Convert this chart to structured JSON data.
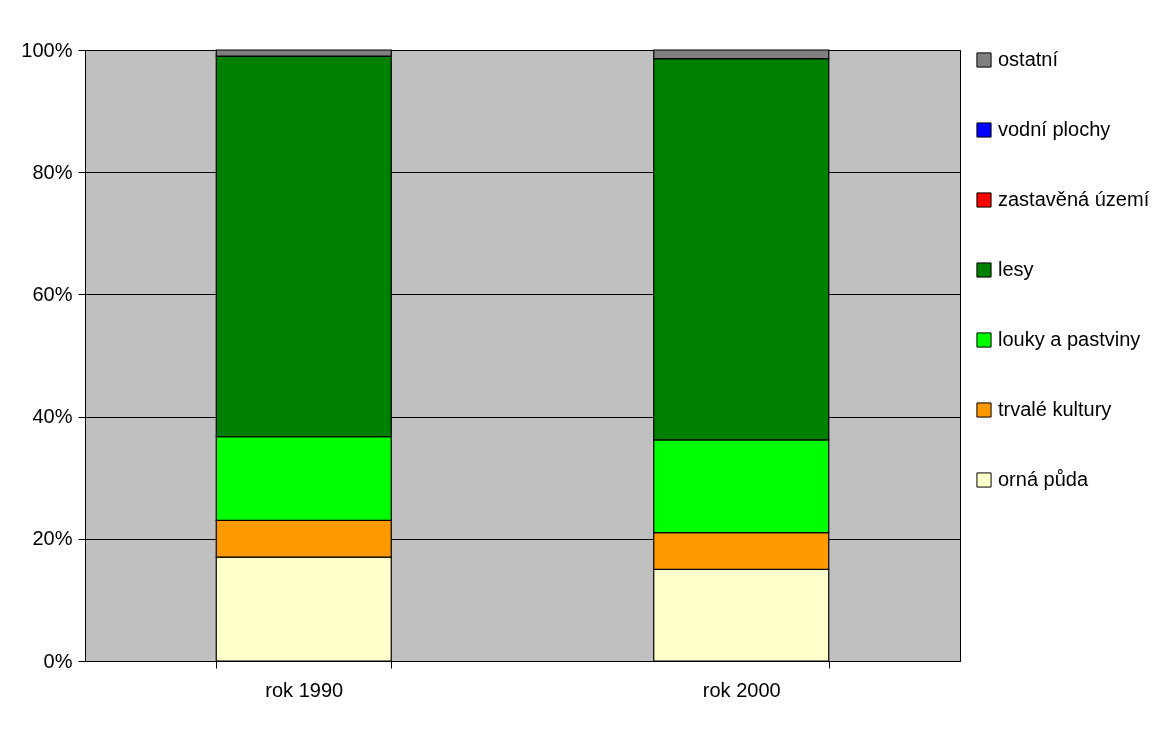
{
  "chart_data": {
    "type": "bar",
    "stacked": true,
    "categories": [
      "rok 1990",
      "rok 2000"
    ],
    "series": [
      {
        "name": "orná půda",
        "color": "#ffffcc",
        "values": [
          17,
          15
        ]
      },
      {
        "name": "trvalé kultury",
        "color": "#ff9900",
        "values": [
          6,
          6
        ]
      },
      {
        "name": "louky a pastviny",
        "color": "#00ff00",
        "values": [
          13.7,
          15.2
        ]
      },
      {
        "name": "lesy",
        "color": "#008000",
        "values": [
          62.3,
          62.4
        ]
      },
      {
        "name": "zastavěná území",
        "color": "#ff0000",
        "values": [
          null,
          null
        ]
      },
      {
        "name": "vodní plochy",
        "color": "#0000ff",
        "values": [
          null,
          null
        ]
      },
      {
        "name": "ostatní",
        "color": "#808080",
        "values": [
          1.0,
          1.4
        ]
      }
    ],
    "ylim": [
      0,
      100
    ],
    "yticks": [
      {
        "value": 0,
        "label": "0%"
      },
      {
        "value": 20,
        "label": "20%"
      },
      {
        "value": 40,
        "label": "40%"
      },
      {
        "value": 60,
        "label": "60%"
      },
      {
        "value": 80,
        "label": "80%"
      },
      {
        "value": 100,
        "label": "100%"
      }
    ],
    "grid": "y",
    "legend": "right"
  }
}
